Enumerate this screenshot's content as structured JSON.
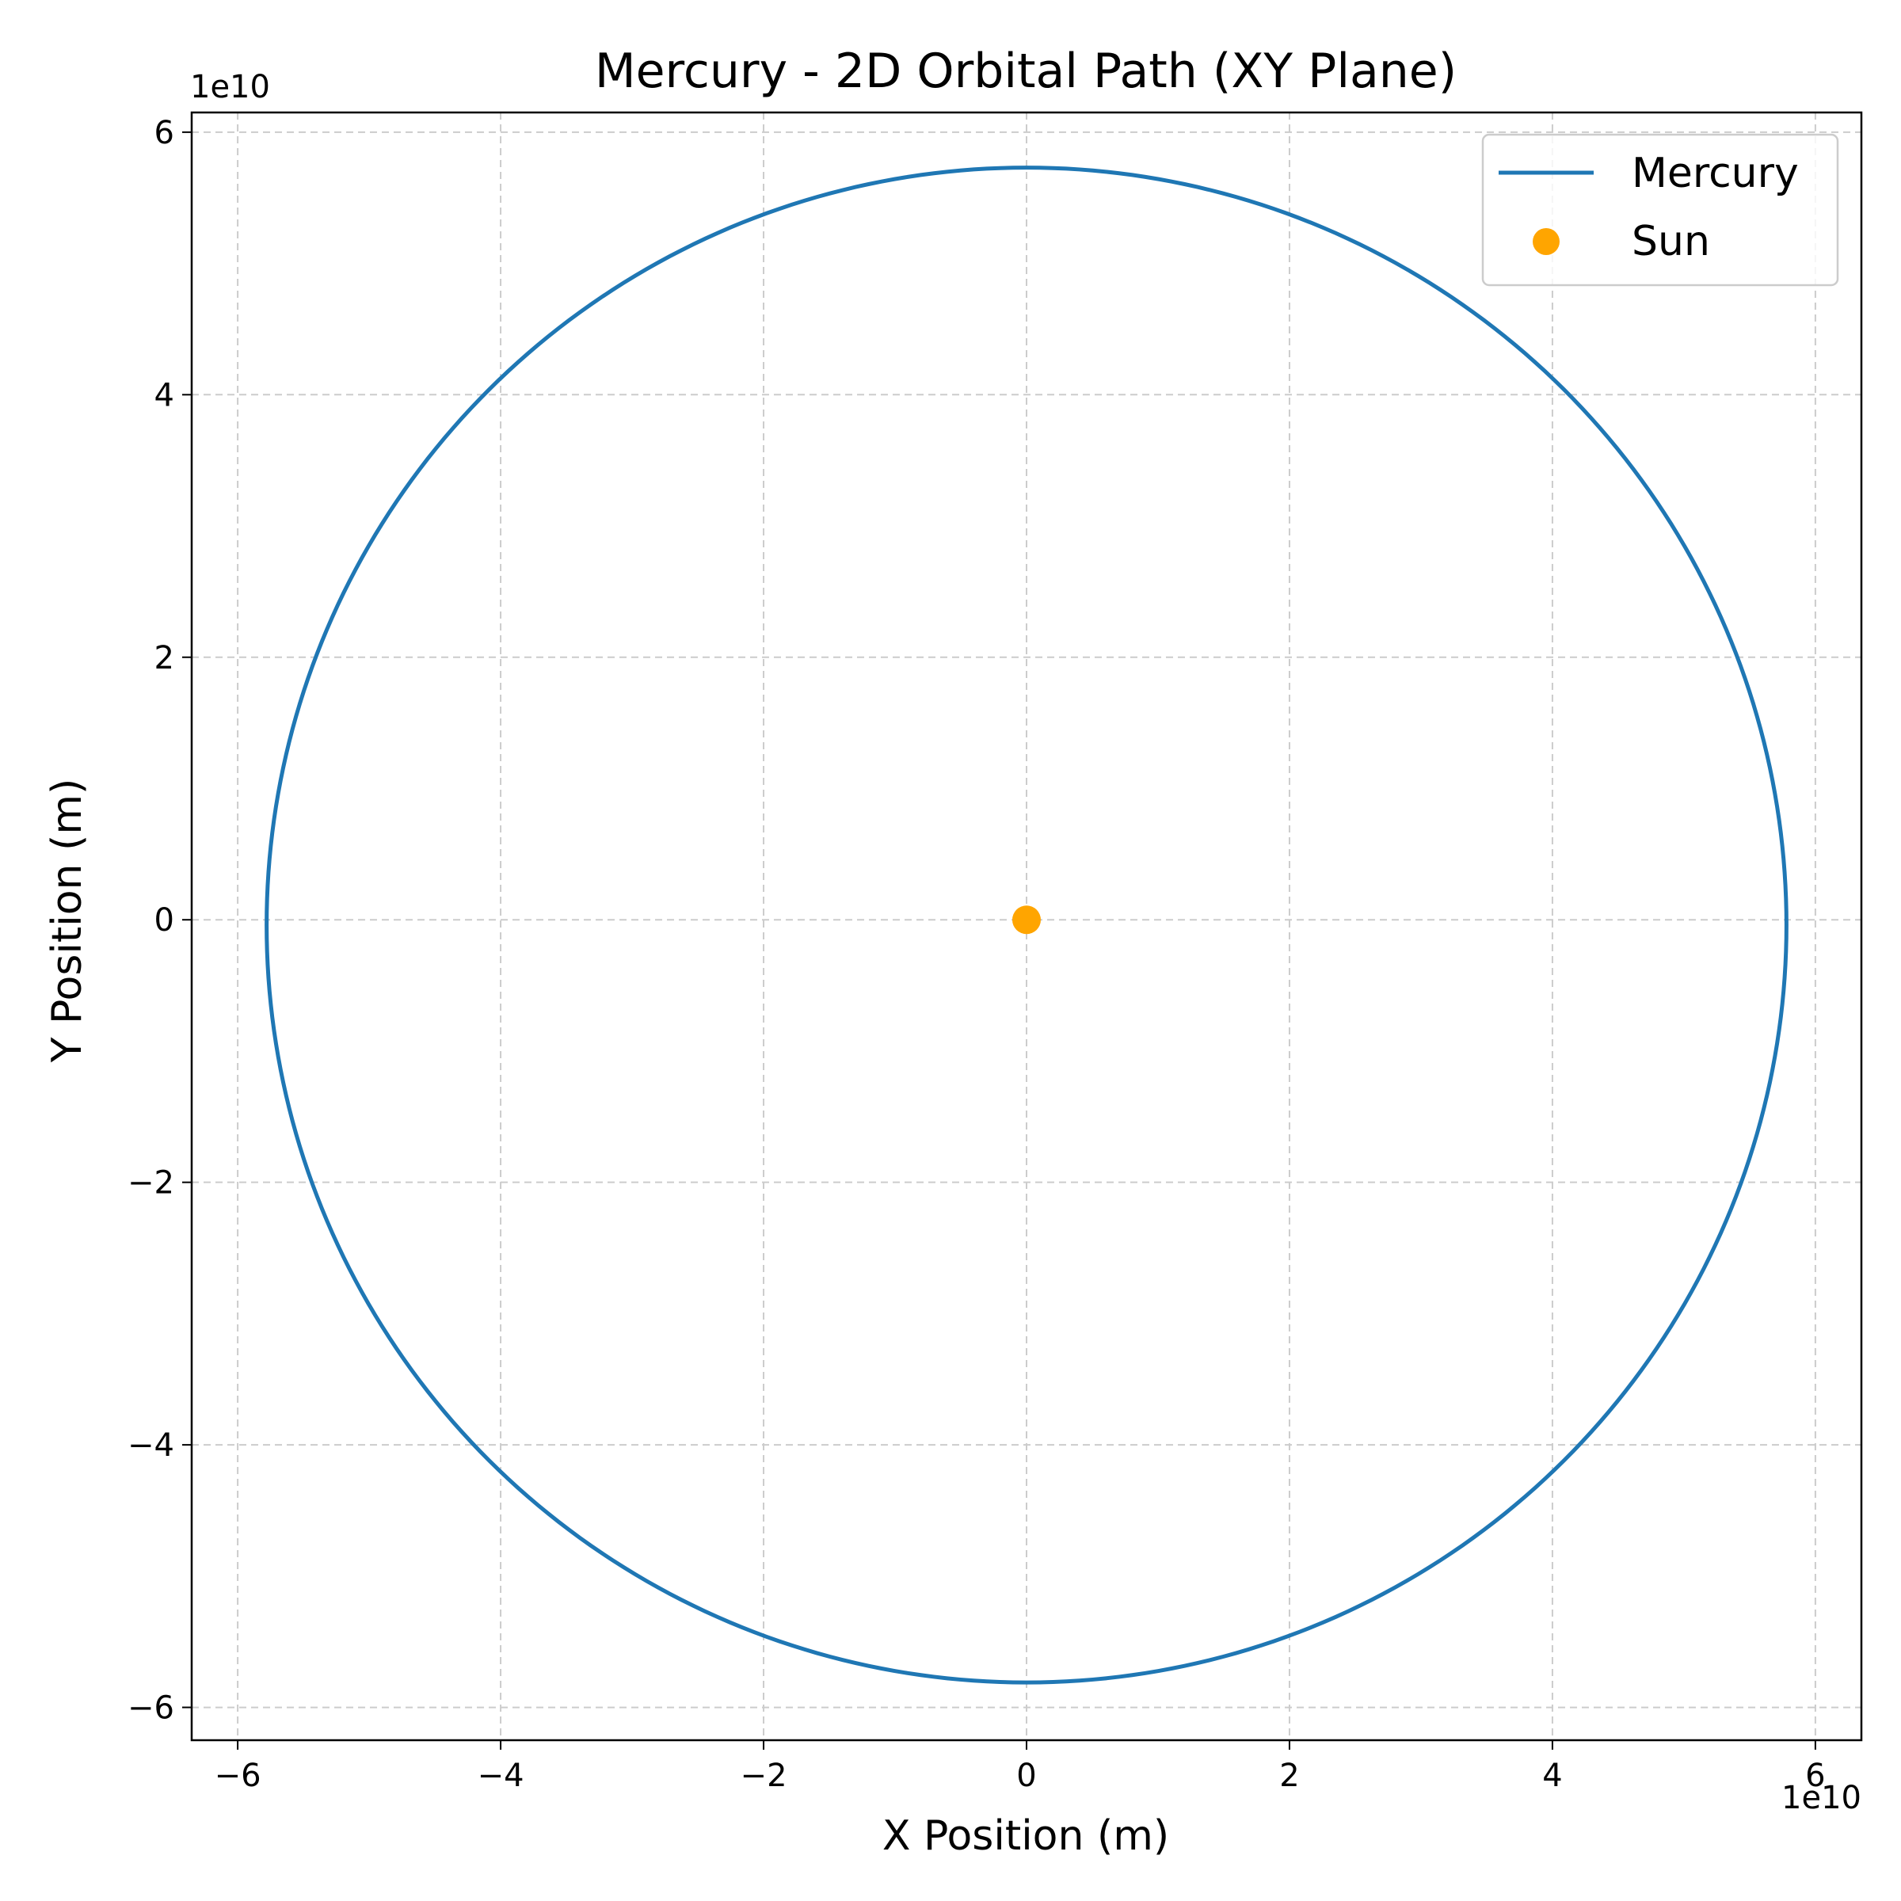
{
  "chart_data": {
    "type": "line",
    "title": "Mercury - 2D Orbital Path (XY Plane)",
    "xlabel": "X Position (m)",
    "ylabel": "Y Position (m)",
    "x_offset_label": "1e10",
    "y_offset_label": "1e10",
    "xlim": [
      -6.35,
      6.35
    ],
    "ylim": [
      -6.25,
      6.15
    ],
    "xticks": [
      -6,
      -4,
      -2,
      0,
      2,
      4,
      6
    ],
    "yticks": [
      -6,
      -4,
      -2,
      0,
      2,
      4,
      6
    ],
    "xtick_labels": [
      "−6",
      "−4",
      "−2",
      "0",
      "2",
      "4",
      "6"
    ],
    "ytick_labels": [
      "−6",
      "−4",
      "−2",
      "0",
      "2",
      "4",
      "6"
    ],
    "grid": true,
    "legend_position": "top-right",
    "series": [
      {
        "name": "Mercury",
        "kind": "line",
        "color": "#1f77b4",
        "orbit": {
          "xmin": -5.78,
          "xmax": 5.78,
          "ymin": -5.81,
          "ymax": 5.73,
          "note_units": "1e10 m"
        }
      },
      {
        "name": "Sun",
        "kind": "marker",
        "color": "#ffa500",
        "x": 0,
        "y": 0
      }
    ]
  }
}
